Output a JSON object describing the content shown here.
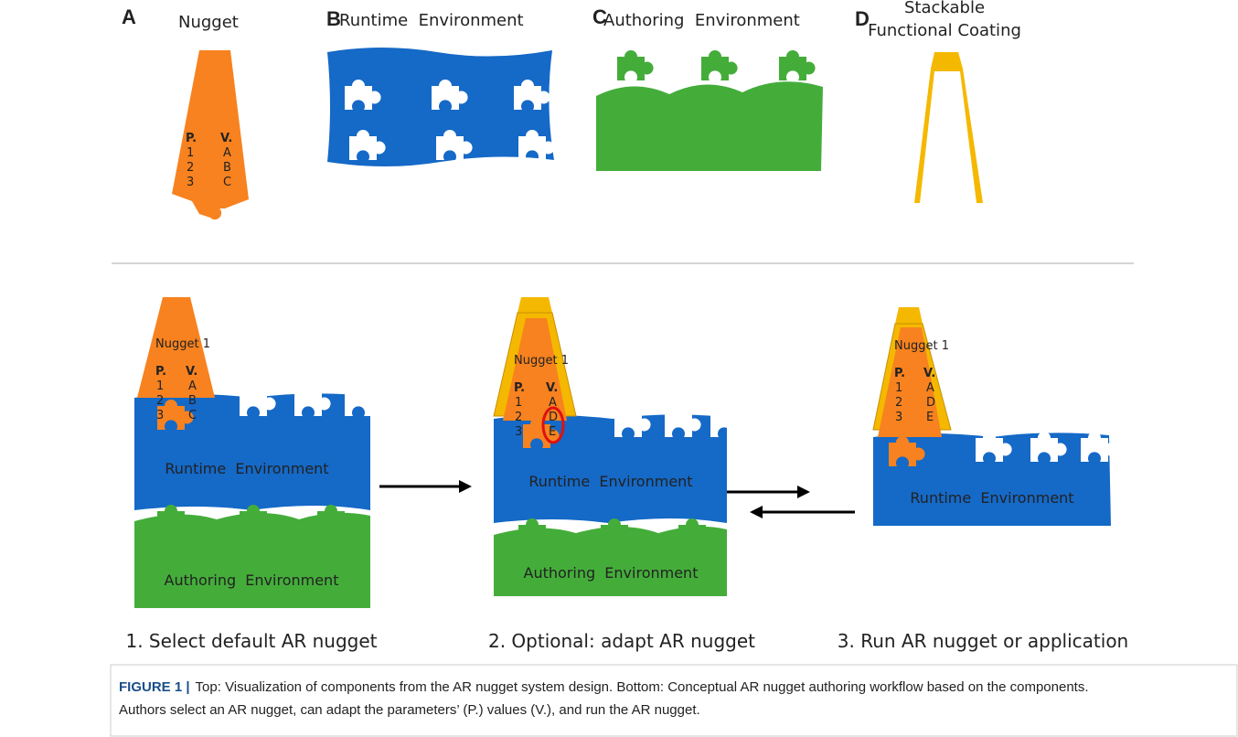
{
  "top": [
    {
      "letter": "A",
      "title": [
        "Nugget"
      ],
      "nugget": {
        "param_header": "P.",
        "value_header": "V.",
        "params": [
          "1",
          "2",
          "3"
        ],
        "values": [
          "A",
          "B",
          "C"
        ]
      }
    },
    {
      "letter": "B",
      "title": [
        "Runtime  Environment"
      ]
    },
    {
      "letter": "C",
      "title": [
        "Authoring  Environment"
      ]
    },
    {
      "letter": "D",
      "title": [
        "Stackable",
        "Functional Coating"
      ]
    }
  ],
  "workflow": [
    {
      "nugget": {
        "name": "Nugget 1",
        "param_header": "P.",
        "value_header": "V.",
        "params": [
          "1",
          "2",
          "3"
        ],
        "values": [
          "A",
          "B",
          "C"
        ]
      },
      "runtime": "Runtime  Environment",
      "authoring": "Authoring  Environment",
      "caption": "1. Select default AR nugget"
    },
    {
      "nugget": {
        "name": "Nugget 1",
        "param_header": "P.",
        "value_header": "V.",
        "params": [
          "1",
          "2",
          "3"
        ],
        "values": [
          "A",
          "D",
          "E"
        ]
      },
      "runtime": "Runtime  Environment",
      "authoring": "Authoring  Environment",
      "caption": "2. Optional: adapt AR nugget"
    },
    {
      "nugget": {
        "name": "Nugget 1",
        "param_header": "P.",
        "value_header": "V.",
        "params": [
          "1",
          "2",
          "3"
        ],
        "values": [
          "A",
          "D",
          "E"
        ]
      },
      "runtime": "Runtime  Environment",
      "caption": "3. Run AR nugget or application"
    }
  ],
  "caption": {
    "label": "FIGURE 1 |",
    "lines": [
      "Top: Visualization of components from the AR nugget system design. Bottom: Conceptual AR nugget authoring workflow based on the components.",
      "Authors select an AR nugget, can adapt the parameters’ (P.) values (V.), and run the AR nugget."
    ]
  }
}
